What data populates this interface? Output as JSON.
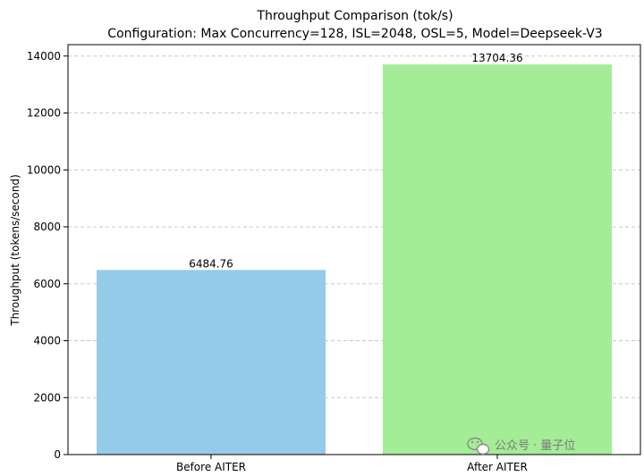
{
  "chart_data": {
    "type": "bar",
    "title": "Throughput Comparison (tok/s)",
    "subtitle": "Configuration: Max Concurrency=128, ISL=2048, OSL=5, Model=Deepseek-V3",
    "ylabel": "Throughput (tokens/second)",
    "xlabel": "",
    "categories": [
      "Before AITER",
      "After AITER"
    ],
    "values": [
      6484.76,
      13704.36
    ],
    "value_labels": [
      "6484.76",
      "13704.36"
    ],
    "colors": [
      "#95cbe8",
      "#a4ec96"
    ],
    "ylim": [
      0,
      14400
    ],
    "yticks": [
      0,
      2000,
      4000,
      6000,
      8000,
      10000,
      12000,
      14000
    ],
    "ytick_labels": [
      "0",
      "2000",
      "4000",
      "6000",
      "8000",
      "10000",
      "12000",
      "14000"
    ],
    "grid": "y-dashed",
    "legend": "none"
  },
  "watermark": {
    "text": "公众号 · 量子位",
    "icon": "wechat-icon"
  }
}
